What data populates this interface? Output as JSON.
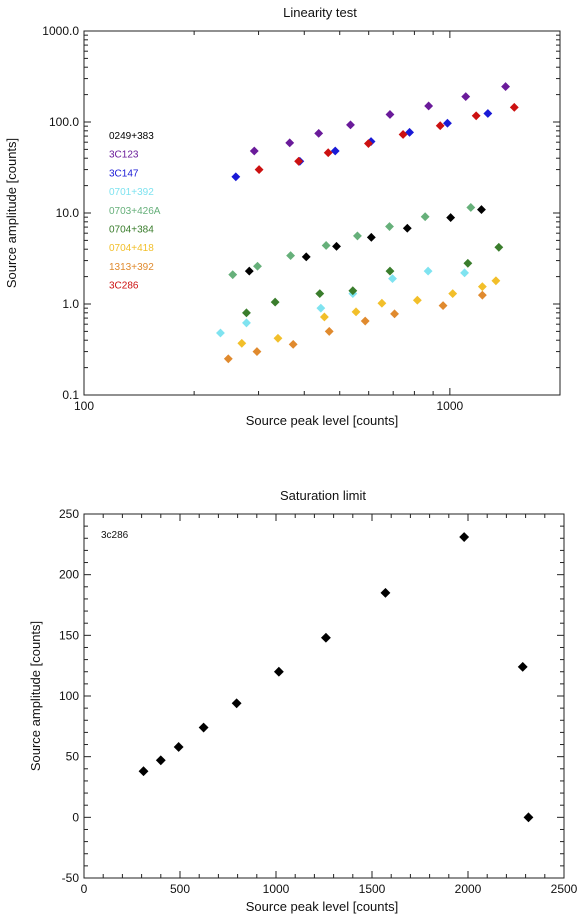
{
  "chart_data": [
    {
      "type": "scatter",
      "title": "Linearity test",
      "xlabel": "Source peak level [counts]",
      "ylabel": "Source amplitude [counts]",
      "xscale": "log",
      "yscale": "log",
      "xlim": [
        100,
        2000
      ],
      "ylim": [
        0.1,
        1000
      ],
      "xticks": [
        {
          "v": 100,
          "label": "100"
        },
        {
          "v": 1000,
          "label": "1000"
        }
      ],
      "yticks": [
        {
          "v": 0.1,
          "label": "0.1"
        },
        {
          "v": 1,
          "label": "1.0"
        },
        {
          "v": 10,
          "label": "10.0"
        },
        {
          "v": 100,
          "label": "100.0"
        },
        {
          "v": 1000,
          "label": "1000.0"
        }
      ],
      "legend_position": "left",
      "series": [
        {
          "name": "0249+383",
          "color": "#000000",
          "x": [
            283,
            405,
            490,
            610,
            765,
            1005,
            1220
          ],
          "y": [
            2.3,
            3.3,
            4.3,
            5.4,
            6.8,
            8.9,
            10.9
          ]
        },
        {
          "name": "3C123",
          "color": "#6a1b9a",
          "x": [
            292,
            365,
            438,
            535,
            686,
            875,
            1105,
            1420
          ],
          "y": [
            48,
            59,
            75,
            93,
            121,
            150,
            190,
            245
          ]
        },
        {
          "name": "3C147",
          "color": "#1a1ad6",
          "x": [
            260,
            389,
            486,
            609,
            776,
            985,
            1270
          ],
          "y": [
            25,
            37,
            48,
            61,
            77,
            97,
            124
          ]
        },
        {
          "name": "0701+392",
          "color": "#7fe3f0",
          "x": [
            236,
            278,
            444,
            543,
            697,
            872,
            1097
          ],
          "y": [
            0.48,
            0.62,
            0.9,
            1.3,
            1.9,
            2.3,
            2.2
          ]
        },
        {
          "name": "0703+426A",
          "color": "#66b07a",
          "x": [
            255,
            298,
            367,
            459,
            559,
            684,
            856,
            1141
          ],
          "y": [
            2.1,
            2.6,
            3.4,
            4.4,
            5.6,
            7.1,
            9.1,
            11.5
          ]
        },
        {
          "name": "0704+384",
          "color": "#3a7d2c",
          "x": [
            278,
            333,
            441,
            543,
            686,
            1120,
            1361
          ],
          "y": [
            0.8,
            1.05,
            1.3,
            1.4,
            2.3,
            2.8,
            4.2
          ]
        },
        {
          "name": "0704+418",
          "color": "#f2bf2a",
          "x": [
            270,
            339,
            454,
            554,
            652,
            815,
            1018,
            1227,
            1336
          ],
          "y": [
            0.37,
            0.42,
            0.72,
            0.82,
            1.02,
            1.1,
            1.3,
            1.55,
            1.8
          ]
        },
        {
          "name": "1313+392",
          "color": "#e08a2e",
          "x": [
            248,
            297,
            373,
            468,
            587,
            706,
            958,
            1227
          ],
          "y": [
            0.25,
            0.3,
            0.36,
            0.5,
            0.65,
            0.78,
            0.96,
            1.25
          ]
        },
        {
          "name": "3C286",
          "color": "#cc1111",
          "x": [
            301,
            386,
            465,
            599,
            745,
            941,
            1180,
            1500
          ],
          "y": [
            30,
            37,
            46,
            58,
            73,
            91,
            117,
            145
          ]
        }
      ]
    },
    {
      "type": "scatter",
      "title": "Saturation limit",
      "xlabel": "Source peak level [counts]",
      "ylabel": "Source amplitude [counts]",
      "xlim": [
        0,
        2500
      ],
      "ylim": [
        -50,
        250
      ],
      "xticks": [
        0,
        500,
        1000,
        1500,
        2000,
        2500
      ],
      "yticks": [
        -50,
        0,
        50,
        100,
        150,
        200,
        250
      ],
      "annotation": "3c286",
      "series": [
        {
          "name": "3c286",
          "color": "#000000",
          "x": [
            310,
            400,
            493,
            623,
            795,
            1015,
            1260,
            1570,
            1980,
            2285,
            2315
          ],
          "y": [
            38,
            47,
            58,
            74,
            94,
            120,
            148,
            185,
            231,
            124,
            0
          ]
        }
      ]
    }
  ]
}
